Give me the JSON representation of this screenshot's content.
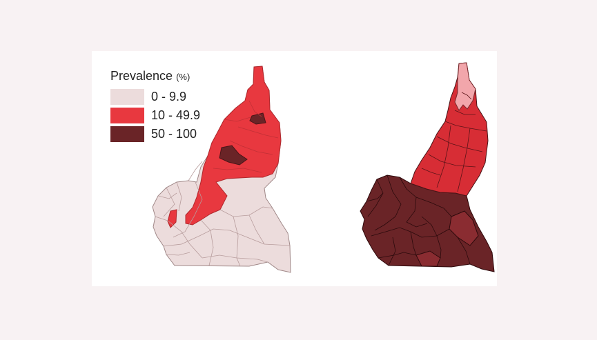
{
  "legend": {
    "title": "Prevalence",
    "unit": "(%)",
    "classes": [
      {
        "label": "0 - 9.9",
        "color": "#ecdcdc"
      },
      {
        "label": "10 - 49.9",
        "color": "#e8383f"
      },
      {
        "label": "50 - 100",
        "color": "#6a2427"
      }
    ]
  },
  "colors": {
    "page_background": "#f8f2f3",
    "panel_background": "#ffffff",
    "low": "#ecdcdc",
    "medium": "#e8383f",
    "medium_dark": "#b92b31",
    "high": "#6a2427",
    "light_pink": "#f2a6ab",
    "border": "#8a7070"
  },
  "maps": [
    {
      "id": "left",
      "shaded_classes": [
        "0 - 9.9",
        "10 - 49.9",
        "50 - 100"
      ]
    },
    {
      "id": "right",
      "shaded_classes": [
        "0 - 9.9",
        "10 - 49.9",
        "50 - 100"
      ]
    }
  ]
}
